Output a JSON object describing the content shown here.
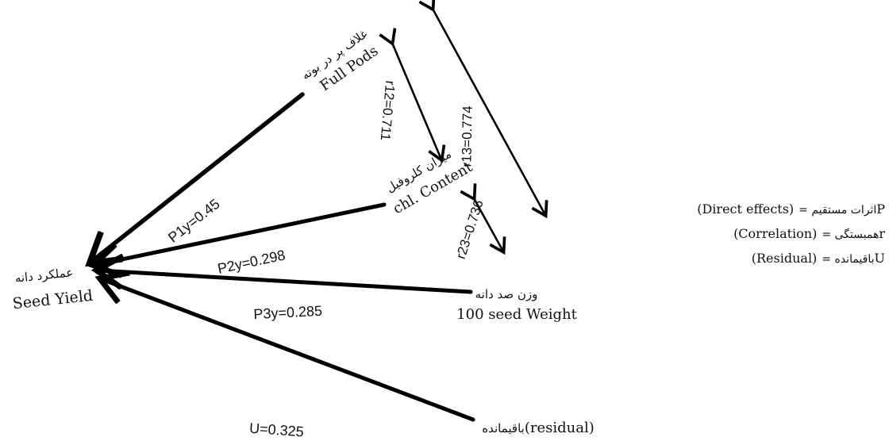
{
  "nodes": {
    "full_pods": {
      "fa": "غلاف پر در بوته",
      "en": "Full Pods"
    },
    "chlorophyll": {
      "fa": "میزان کلروفیل",
      "en": "chl. Content"
    },
    "seed_weight": {
      "fa": "وزن صد دانه",
      "en": "100 seed Weight"
    },
    "seed_yield": {
      "fa": "عملکرد دانه",
      "en": "Seed Yield"
    },
    "residual": {
      "fa": "باقیمانده",
      "en": "(residual)"
    }
  },
  "paths": {
    "p1y": "P1y=0.45",
    "p2y": "P2y=0.298",
    "p3y": "P3y=0.285",
    "u": "U=0.325"
  },
  "correlations": {
    "r12": "r12=0.711",
    "r13": "r13=0.774",
    "r23": "r23=0.736"
  },
  "legend": {
    "direct": {
      "key": "P",
      "fa": "= اثرات مستقیم",
      "en": "(Direct effects)"
    },
    "correlation": {
      "key": "r",
      "fa": "= همبستگی",
      "en": "(Correlation)"
    },
    "residual": {
      "key": "U",
      "fa": "= باقیمانده",
      "en": "(Residual)"
    }
  }
}
